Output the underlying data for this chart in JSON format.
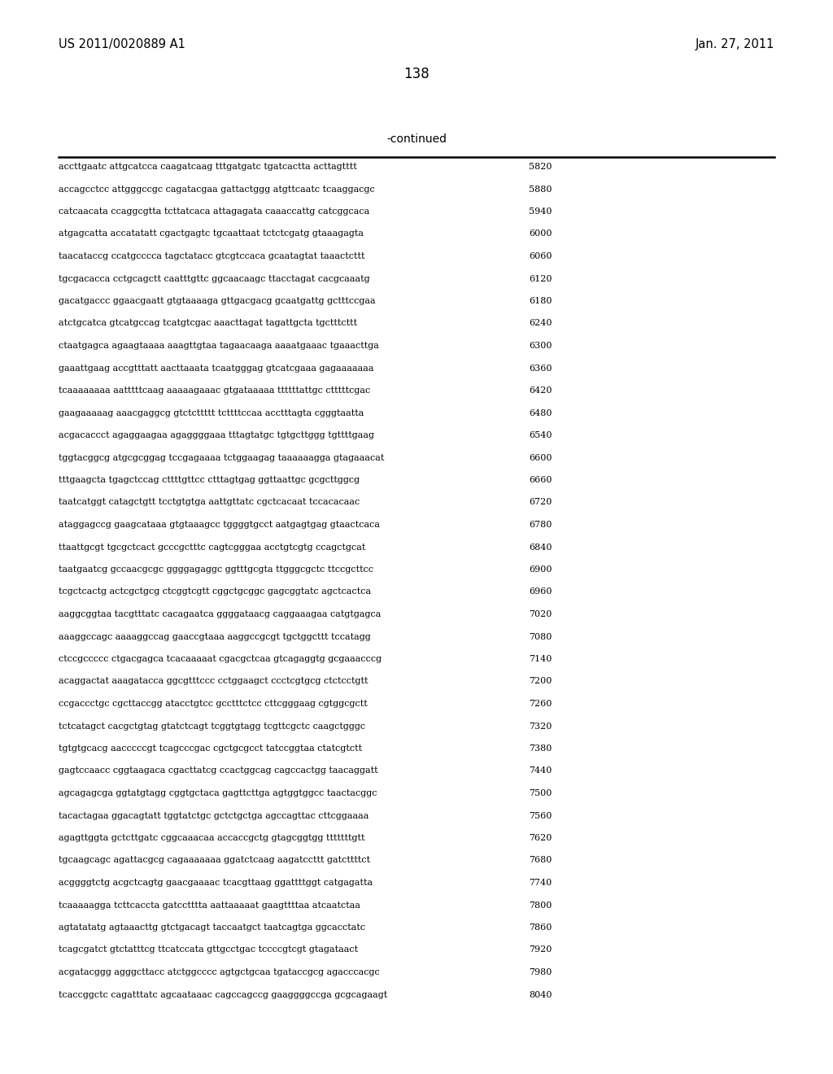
{
  "header_left": "US 2011/0020889 A1",
  "header_right": "Jan. 27, 2011",
  "page_number": "138",
  "continued_label": "-continued",
  "background_color": "#ffffff",
  "text_color": "#000000",
  "font_size_header": 10.5,
  "font_size_page": 12,
  "font_size_continued": 10,
  "font_size_sequence": 8.0,
  "sequence_lines": [
    [
      "accttgaatc attgcatcca caagatcaag tttgatgatc tgatcactta acttagtttt",
      "5820"
    ],
    [
      "accagcctcc attgggccgc cagatacgaa gattactggg atgttcaatc tcaaggacgc",
      "5880"
    ],
    [
      "catcaacata ccaggcgtta tcttatcaca attagagata caaaccattg catcggcaca",
      "5940"
    ],
    [
      "atgagcatta accatatatt cgactgagtc tgcaattaat tctctcgatg gtaaagagta",
      "6000"
    ],
    [
      "taacataccg ccatgcccca tagctatacc gtcgtccaca gcaatagtat taaactcttt",
      "6060"
    ],
    [
      "tgcgacacca cctgcagctt caatttgttc ggcaacaagc ttacctagat cacgcaaatg",
      "6120"
    ],
    [
      "gacatgaccc ggaacgaatt gtgtaaaaga gttgacgacg gcaatgattg gctttccgaa",
      "6180"
    ],
    [
      "atctgcatca gtcatgccag tcatgtcgac aaacttagat tagattgcta tgctttcttt",
      "6240"
    ],
    [
      "ctaatgagca agaagtaaaa aaagttgtaa tagaacaaga aaaatgaaac tgaaacttga",
      "6300"
    ],
    [
      "gaaattgaag accgtttatt aacttaaata tcaatgggag gtcatcgaaa gagaaaaaaa",
      "6360"
    ],
    [
      "tcaaaaaaaa aatttttcaag aaaaagaaac gtgataaaaa ttttttattgc ctttttcgac",
      "6420"
    ],
    [
      "gaagaaaaag aaacgaggcg gtctcttttt tcttttccaa acctttagta cgggtaatta",
      "6480"
    ],
    [
      "acgacaccct agaggaagaa agaggggaaa tttagtatgc tgtgcttggg tgttttgaag",
      "6540"
    ],
    [
      "tggtacggcg atgcgcggag tccgagaaaa tctggaagag taaaaaagga gtagaaacat",
      "6600"
    ],
    [
      "tttgaagcta tgagctccag cttttgttcc ctttagtgag ggttaattgc gcgcttggcg",
      "6660"
    ],
    [
      "taatcatggt catagctgtt tcctgtgtga aattgttatc cgctcacaat tccacacaac",
      "6720"
    ],
    [
      "ataggagccg gaagcataaa gtgtaaagcc tggggtgcct aatgagtgag gtaactcaca",
      "6780"
    ],
    [
      "ttaattgcgt tgcgctcact gcccgctttc cagtcgggaa acctgtcgtg ccagctgcat",
      "6840"
    ],
    [
      "taatgaatcg gccaacgcgc ggggagaggc ggtttgcgta ttgggcgctc ttccgcttcc",
      "6900"
    ],
    [
      "tcgctcactg actcgctgcg ctcggtcgtt cggctgcggc gagcggtatc agctcactca",
      "6960"
    ],
    [
      "aaggcggtaa tacgtttatc cacagaatca ggggataacg caggaaagaa catgtgagca",
      "7020"
    ],
    [
      "aaaggccagc aaaaggccag gaaccgtaaa aaggccgcgt tgctggcttt tccatagg",
      "7080"
    ],
    [
      "ctccgccccc ctgacgagca tcacaaaaat cgacgctcaa gtcagaggtg gcgaaacccg",
      "7140"
    ],
    [
      "acaggactat aaagatacca ggcgtttccc cctggaagct ccctcgtgcg ctctcctgtt",
      "7200"
    ],
    [
      "ccgaccctgc cgcttaccgg atacctgtcc gcctttctcc cttcgggaag cgtggcgctt",
      "7260"
    ],
    [
      "tctcatagct cacgctgtag gtatctcagt tcggtgtagg tcgttcgctc caagctgggc",
      "7320"
    ],
    [
      "tgtgtgcacg aacccccgt tcagcccgac cgctgcgcct tatccggtaa ctatcgtctt",
      "7380"
    ],
    [
      "gagtccaacc cggtaagaca cgacttatcg ccactggcag cagccactgg taacaggatt",
      "7440"
    ],
    [
      "agcagagcga ggtatgtagg cggtgctaca gagttcttga agtggtggcc taactacggc",
      "7500"
    ],
    [
      "tacactagaa ggacagtatt tggtatctgc gctctgctga agccagttac cttcggaaaa",
      "7560"
    ],
    [
      "agagttggta gctcttgatc cggcaaacaa accaccgctg gtagcggtgg tttttttgtt",
      "7620"
    ],
    [
      "tgcaagcagc agattacgcg cagaaaaaaa ggatctcaag aagatccttt gatcttttct",
      "7680"
    ],
    [
      "acggggtctg acgctcagtg gaacgaaaac tcacgttaag ggattttggt catgagatta",
      "7740"
    ],
    [
      "tcaaaaagga tcttcaccta gatcctttta aattaaaaat gaagttttaa atcaatctaa",
      "7800"
    ],
    [
      "agtatatatg agtaaacttg gtctgacagt taccaatgct taatcagtga ggcacctatc",
      "7860"
    ],
    [
      "tcagcgatct gtctatttcg ttcatccata gttgcctgac tccccgtcgt gtagataact",
      "7920"
    ],
    [
      "acgatacggg agggcttacc atctggcccc agtgctgcaa tgataccgcg agacccacgc",
      "7980"
    ],
    [
      "tcaccggctc cagatttatc agcaataaac cagccagccg gaaggggccga gcgcagaagt",
      "8040"
    ]
  ]
}
